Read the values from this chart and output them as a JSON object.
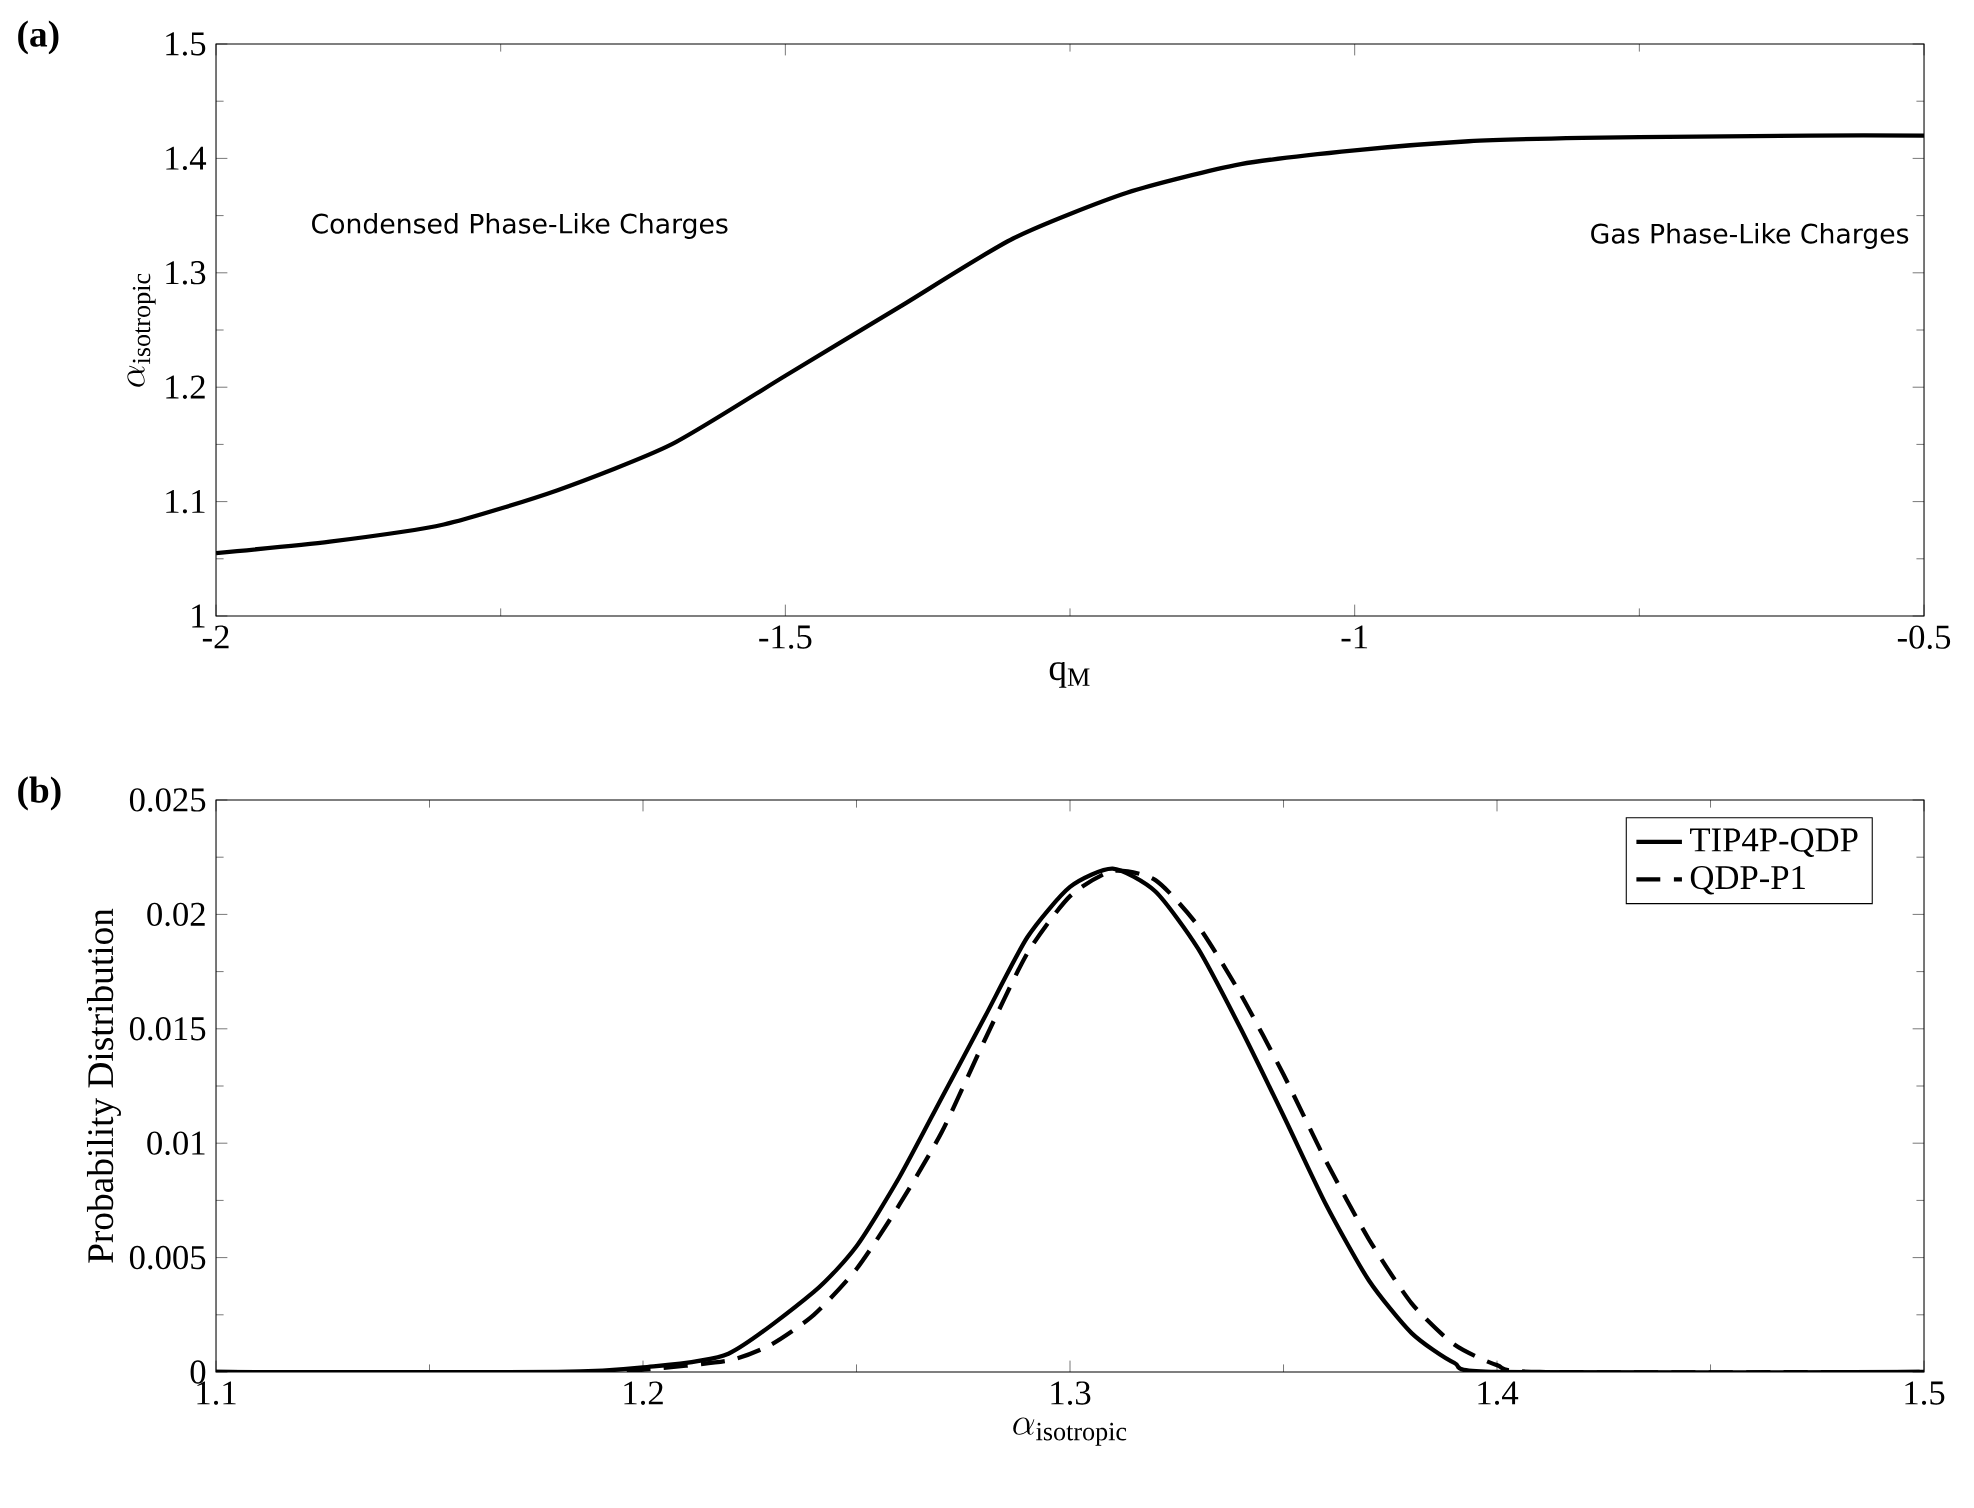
{
  "chart_data": [
    {
      "type": "line",
      "title": "(a)",
      "xlabel": "\\mathrm{q}_{\\mathrm{M}}",
      "ylabel": "\\alpha_{\\mathrm{isotropic}}",
      "xlim": [
        -2,
        -0.5
      ],
      "ylim": [
        1,
        1.5
      ],
      "xticks": [
        -2,
        -1.5,
        -1,
        -0.5
      ],
      "yticks": [
        1,
        1.1,
        1.2,
        1.3,
        1.4,
        1.5
      ],
      "grid": false,
      "legend": false,
      "annotations": [
        "Condensed Phase-Like Charges",
        "Gas Phase-Like Charges"
      ],
      "series": [
        {
          "color": "#000000",
          "line_style": "solid",
          "x": [
            -2,
            -1.9,
            -1.8,
            -1.7,
            -1.6,
            -1.5,
            -1.4,
            -1.3,
            -1.2,
            -1.1,
            -1.0,
            -0.9,
            -0.8,
            -0.7,
            -0.6,
            -0.5
          ],
          "values": [
            1.055,
            1.065,
            1.08,
            1.11,
            1.15,
            1.21,
            1.27,
            1.33,
            1.37,
            1.395,
            1.407,
            1.415,
            1.418,
            1.419,
            1.42,
            1.42
          ]
        }
      ]
    },
    {
      "type": "line",
      "title": "(b)",
      "xlabel": "\\alpha_{\\mathrm{isotropic}}",
      "ylabel": "Probability Distribution",
      "xlim": [
        1.1,
        1.5
      ],
      "ylim": [
        0,
        0.025
      ],
      "xticks": [
        1.1,
        1.2,
        1.3,
        1.4,
        1.5
      ],
      "yticks": [
        0,
        0.005,
        0.01,
        0.015,
        0.02,
        0.025
      ],
      "grid": false,
      "legend": "top right",
      "series": [
        {
          "name": "TIP4P-QDP",
          "color": "#000000",
          "line_style": "solid",
          "x": [
            1.1,
            1.18,
            1.2,
            1.22,
            1.24,
            1.25,
            1.26,
            1.27,
            1.28,
            1.29,
            1.3,
            1.31,
            1.32,
            1.33,
            1.34,
            1.35,
            1.36,
            1.37,
            1.38,
            1.39,
            1.4,
            1.5
          ],
          "values": [
            0,
            0,
            0.0002,
            0.0008,
            0.0035,
            0.0055,
            0.0085,
            0.012,
            0.0155,
            0.019,
            0.0212,
            0.022,
            0.021,
            0.0185,
            0.015,
            0.0112,
            0.0073,
            0.004,
            0.0017,
            0.0004,
            0,
            0
          ]
        },
        {
          "name": "QDP-P1",
          "color": "#000000",
          "line_style": "dashed",
          "x": [
            1.1,
            1.19,
            1.2,
            1.22,
            1.23,
            1.24,
            1.25,
            1.26,
            1.27,
            1.28,
            1.29,
            1.3,
            1.31,
            1.32,
            1.33,
            1.34,
            1.35,
            1.36,
            1.37,
            1.38,
            1.39,
            1.4,
            1.41,
            1.5
          ],
          "values": [
            0,
            0,
            0.0001,
            0.0005,
            0.0012,
            0.0025,
            0.0045,
            0.0073,
            0.0105,
            0.0145,
            0.0183,
            0.0208,
            0.0219,
            0.0215,
            0.0195,
            0.0165,
            0.013,
            0.0092,
            0.0058,
            0.003,
            0.0012,
            0.0003,
            0,
            0
          ]
        }
      ]
    }
  ]
}
